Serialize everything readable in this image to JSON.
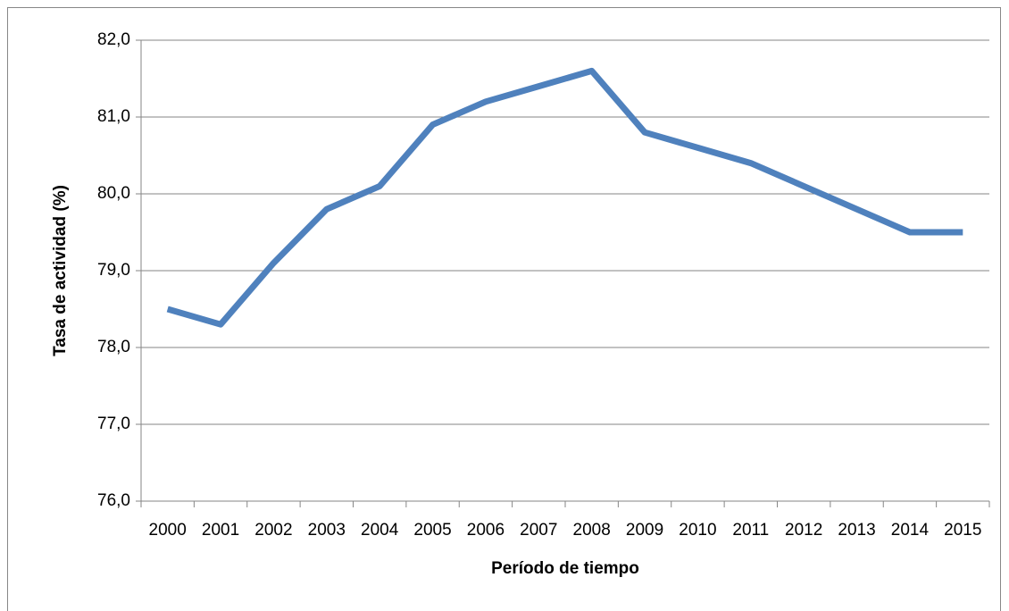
{
  "chart_data": {
    "type": "line",
    "x_label": "Período de tiempo",
    "y_label": "Tasa de actividad (%)",
    "categories": [
      "2000",
      "2001",
      "2002",
      "2003",
      "2004",
      "2005",
      "2006",
      "2007",
      "2008",
      "2009",
      "2010",
      "2011",
      "2012",
      "2013",
      "2014",
      "2015"
    ],
    "values": [
      78.5,
      78.3,
      79.1,
      79.8,
      80.1,
      80.9,
      81.2,
      81.4,
      81.6,
      80.8,
      80.6,
      80.4,
      80.1,
      79.8,
      79.5,
      79.5
    ],
    "color": "#4f81bd",
    "ylim": [
      76,
      82
    ],
    "yticks": [
      {
        "value": 76,
        "label": "76,0"
      },
      {
        "value": 77,
        "label": "77,0"
      },
      {
        "value": 78,
        "label": "78,0"
      },
      {
        "value": 79,
        "label": "79,0"
      },
      {
        "value": 80,
        "label": "80,0"
      },
      {
        "value": 81,
        "label": "81,0"
      },
      {
        "value": 82,
        "label": "82,0"
      }
    ],
    "grid": true
  }
}
